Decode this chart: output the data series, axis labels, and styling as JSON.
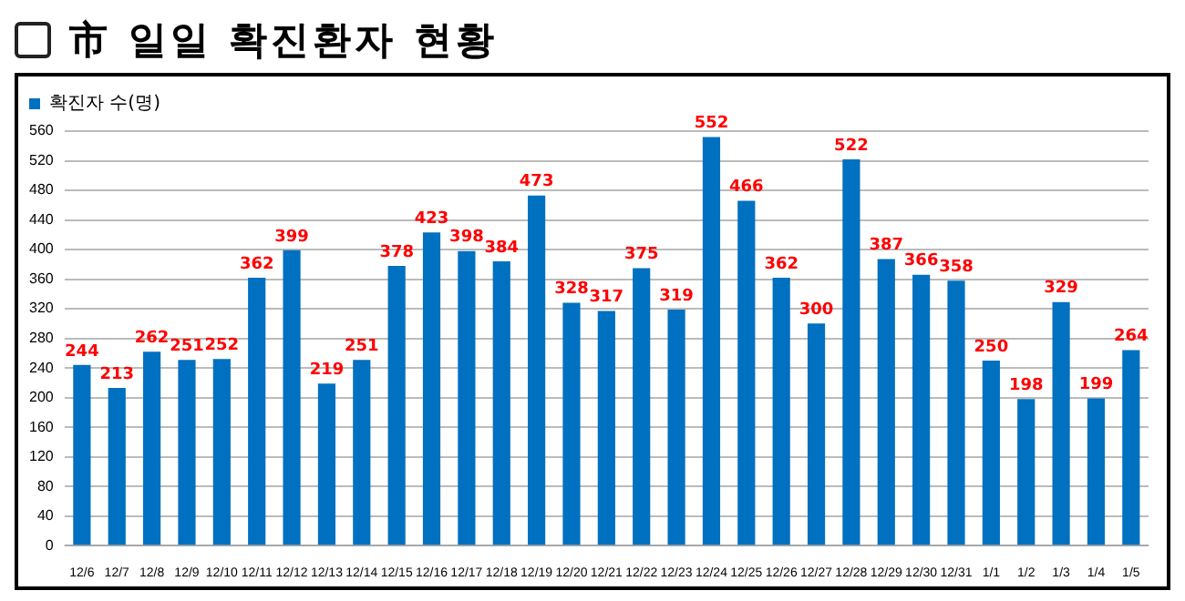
{
  "chart_data": {
    "type": "bar",
    "title": "市 일일 확진환자 현황",
    "categories": [
      "12/6",
      "12/7",
      "12/8",
      "12/9",
      "12/10",
      "12/11",
      "12/12",
      "12/13",
      "12/14",
      "12/15",
      "12/16",
      "12/17",
      "12/18",
      "12/19",
      "12/20",
      "12/21",
      "12/22",
      "12/23",
      "12/24",
      "12/25",
      "12/26",
      "12/27",
      "12/28",
      "12/29",
      "12/30",
      "12/31",
      "1/1",
      "1/2",
      "1/3",
      "1/4",
      "1/5"
    ],
    "series": [
      {
        "name": "확진자 수(명)",
        "color": "#0070c0",
        "values": [
          244,
          213,
          262,
          251,
          252,
          362,
          399,
          219,
          251,
          378,
          423,
          398,
          384,
          473,
          328,
          317,
          375,
          319,
          552,
          466,
          362,
          300,
          522,
          387,
          366,
          358,
          250,
          198,
          329,
          199,
          264
        ]
      }
    ],
    "ylim": [
      0,
      560
    ],
    "yticks": [
      0,
      40,
      80,
      120,
      160,
      200,
      240,
      280,
      320,
      360,
      400,
      440,
      480,
      520,
      560
    ],
    "grid": "y",
    "legend": "top left",
    "data_labels": true
  }
}
